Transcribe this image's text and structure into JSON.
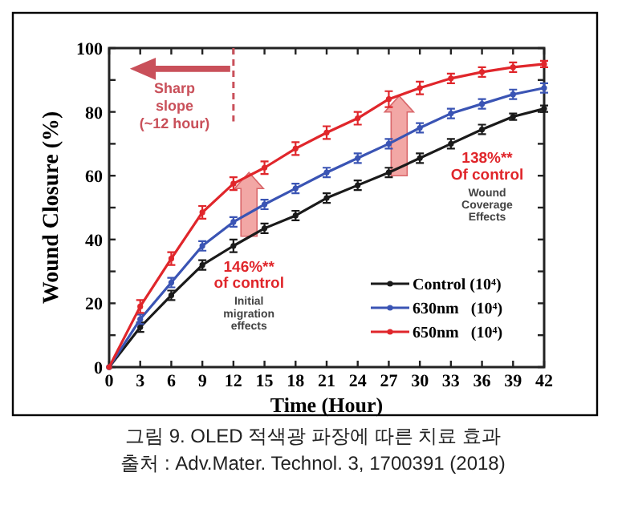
{
  "chart_data": {
    "type": "line",
    "title": "그림 9. OLED 적색광 파장에 따른 치료 효과",
    "xlabel": "Time (Hour)",
    "ylabel": "Wound Closure (%)",
    "x": [
      0,
      3,
      6,
      9,
      12,
      15,
      18,
      21,
      24,
      27,
      30,
      33,
      36,
      39,
      42
    ],
    "series": [
      {
        "name": "Control (10⁴)",
        "color": "#1a1a1a",
        "values": [
          0,
          12.5,
          22.5,
          32,
          38,
          43.5,
          47.5,
          53,
          57,
          61,
          65.5,
          70,
          74.5,
          78.5,
          81
        ],
        "errors": [
          null,
          1.5,
          1.5,
          1.5,
          2,
          1.5,
          1.5,
          1.5,
          1.5,
          1.5,
          1.5,
          1.5,
          1.5,
          1,
          1
        ]
      },
      {
        "name": "630nm   (10⁴)",
        "color": "#3a54b4",
        "values": [
          0,
          15,
          26.5,
          38,
          45.5,
          51,
          56,
          61,
          65.5,
          70,
          75,
          79.5,
          82.5,
          85.5,
          87.5
        ],
        "errors": [
          null,
          1.5,
          1.5,
          1.5,
          1.5,
          1.5,
          1.5,
          1.5,
          1.5,
          1.5,
          1.5,
          1.5,
          1.5,
          1.5,
          1.5
        ]
      },
      {
        "name": "650nm   (10⁴)",
        "color": "#e0262b",
        "values": [
          0,
          19,
          34,
          48.5,
          57.5,
          62.5,
          68.5,
          73.5,
          78,
          84,
          87.5,
          90.5,
          92.5,
          94,
          95
        ],
        "errors": [
          null,
          2,
          2,
          2,
          2,
          2,
          2,
          2,
          2,
          2.5,
          2,
          1.5,
          1.5,
          1.5,
          1
        ]
      }
    ],
    "xlim": [
      0,
      42
    ],
    "xticks": [
      0,
      3,
      6,
      9,
      12,
      15,
      18,
      21,
      24,
      27,
      30,
      33,
      36,
      39,
      42
    ],
    "ylim": [
      0,
      100
    ],
    "yticks": [
      0,
      {
        "value": 10,
        "label": null
      },
      20,
      {
        "value": 30,
        "label": null
      },
      40,
      {
        "value": 50,
        "label": null
      },
      60,
      {
        "value": 70,
        "label": null
      },
      80,
      {
        "value": 90,
        "label": null
      },
      100
    ],
    "marker": "circle",
    "line_style": "solid",
    "grid": false,
    "legend": "bottom right",
    "ref_lines": [
      {
        "axis": "x",
        "value": 12,
        "label": "Sharp slope (~12 hour)",
        "color": "#c9505a",
        "line_style": "dashed"
      }
    ],
    "annotations": [
      "146%** of control",
      "Initial migration effects",
      "138%** Of control",
      "Wound Coverage Effects",
      "출처 : Adv.Mater. Technol. 3, 1700391 (2018)"
    ]
  }
}
